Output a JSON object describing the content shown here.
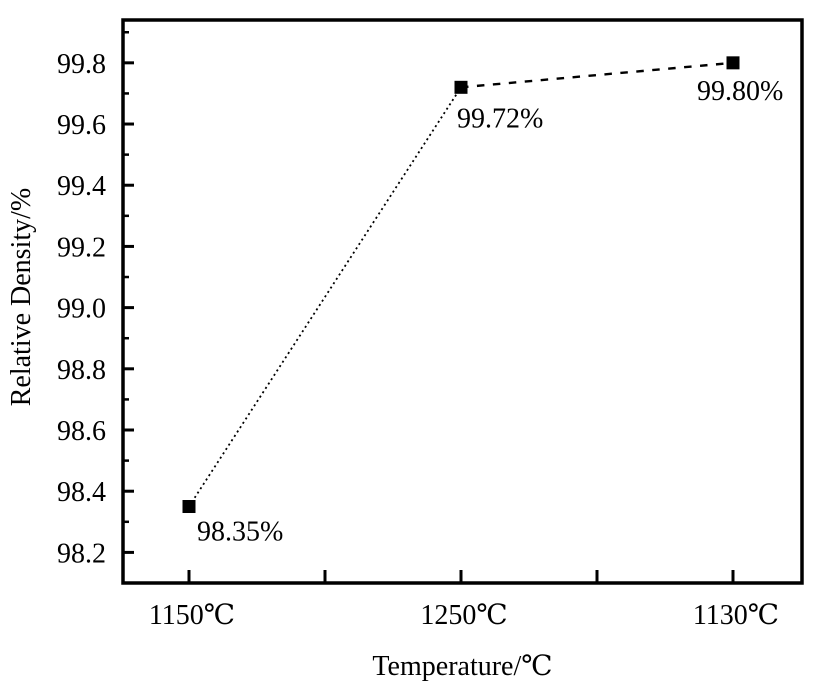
{
  "figure": {
    "background": "#ffffff"
  },
  "chart_data": {
    "type": "line",
    "title": "",
    "xlabel": "Temperature/℃",
    "ylabel": "Relative Density/%",
    "x_categories": [
      "1150℃",
      "1250℃",
      "1130℃"
    ],
    "series": [
      {
        "name": "relative-density",
        "values": [
          98.35,
          99.72,
          99.8
        ],
        "marker": "filled-square",
        "color": "#000000",
        "segment_styles": [
          "dotted",
          "dashed"
        ]
      }
    ],
    "point_labels": [
      "98.35%",
      "99.72%",
      "99.80%"
    ],
    "y_ticks": [
      "98.2",
      "98.4",
      "98.6",
      "98.8",
      "99.0",
      "99.2",
      "99.4",
      "99.6",
      "99.8"
    ],
    "y_minor_step": 0.1,
    "ylim": [
      98.1,
      99.94
    ],
    "grid": false,
    "legend": "none",
    "tick_direction": "in",
    "axis_color": "#000000",
    "text_color": "#000000"
  }
}
